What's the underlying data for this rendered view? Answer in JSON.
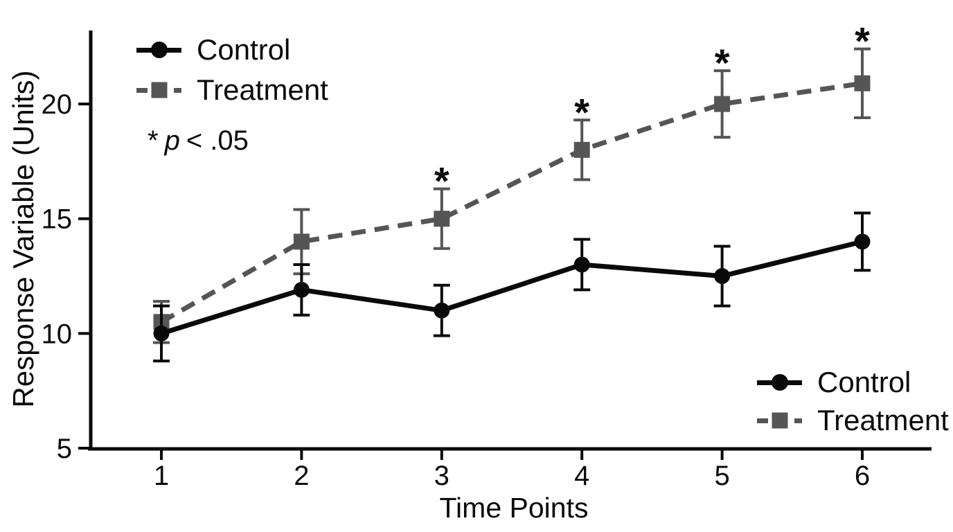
{
  "figure": {
    "note": {
      "star": "*",
      "p": "p",
      "rest": "< .05"
    }
  },
  "chart_data": {
    "type": "line",
    "title": "",
    "xlabel": "Time Points",
    "ylabel": "Response Variable (Units)",
    "x": [
      1,
      2,
      3,
      4,
      5,
      6
    ],
    "yticks": [
      5,
      10,
      15,
      20
    ],
    "ylim": [
      5,
      23.2
    ],
    "xlim": [
      0.5,
      6.5
    ],
    "grid": false,
    "axis_color": "#0a0a0a",
    "series": [
      {
        "name": "Control",
        "values": [
          10,
          11.9,
          11,
          13,
          12.5,
          14
        ],
        "errors": [
          1.2,
          1.1,
          1.1,
          1.1,
          1.3,
          1.25
        ],
        "color": "#0a0a0a",
        "marker": "circle",
        "line_style": "solid",
        "significant": [
          false,
          false,
          false,
          false,
          false,
          false
        ]
      },
      {
        "name": "Treatment",
        "values": [
          10.5,
          14,
          15,
          18,
          20,
          20.9
        ],
        "errors": [
          0.9,
          1.4,
          1.3,
          1.3,
          1.45,
          1.5
        ],
        "color": "#555555",
        "marker": "square",
        "line_style": "dashed",
        "significant": [
          false,
          false,
          true,
          true,
          true,
          true
        ]
      }
    ],
    "significance_note": "* p < .05",
    "legend_positions": [
      "top-left",
      "bottom-right"
    ]
  }
}
